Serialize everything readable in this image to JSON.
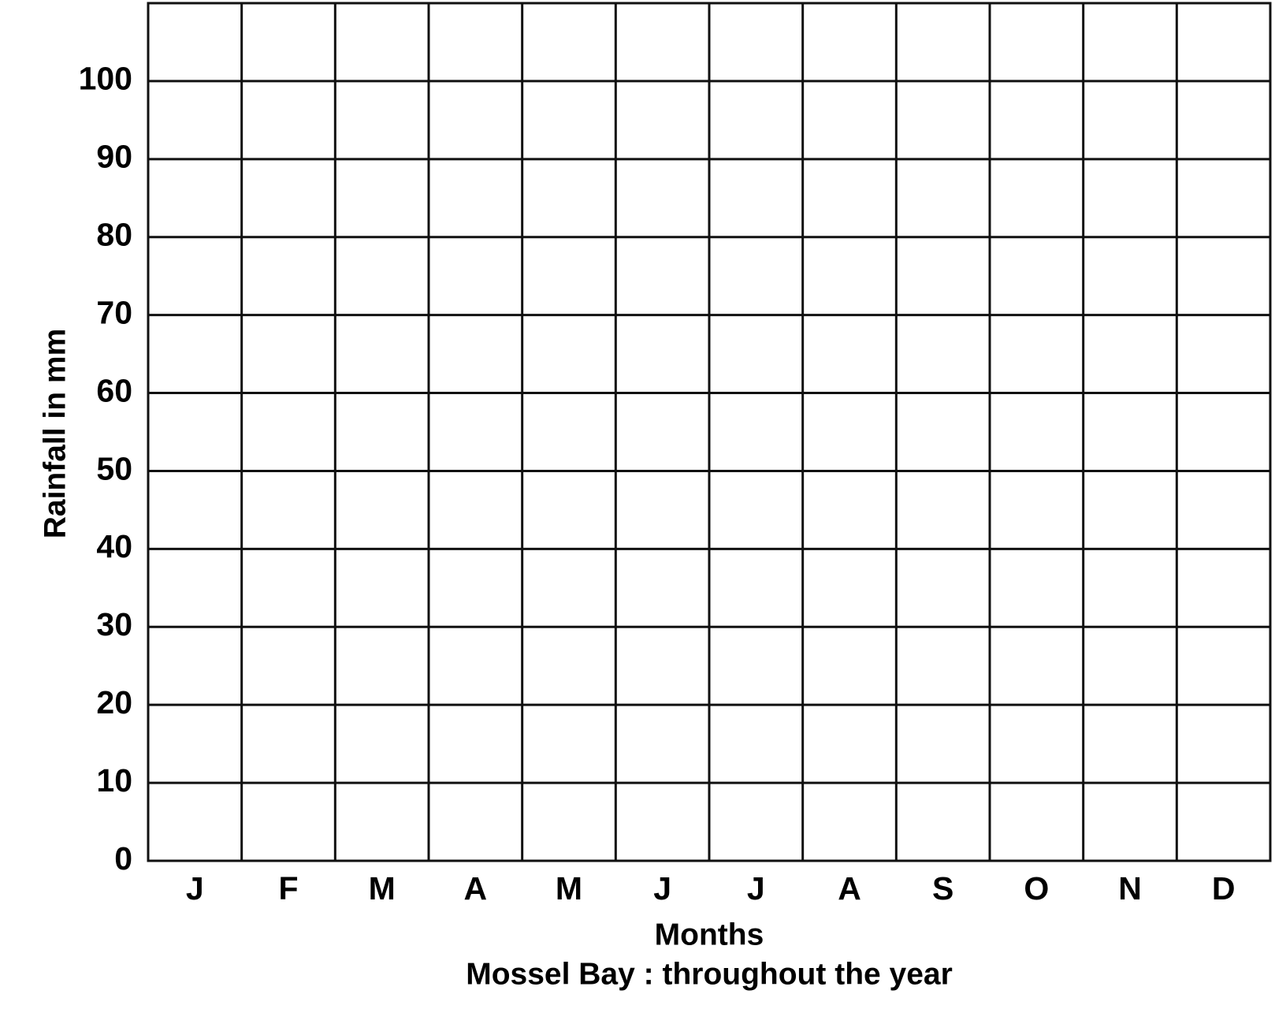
{
  "chart_data": {
    "type": "bar",
    "title": "Mossel Bay : throughout the year",
    "xlabel": "Months",
    "ylabel": "Rainfall in mm",
    "categories": [
      "J",
      "F",
      "M",
      "A",
      "M",
      "J",
      "J",
      "A",
      "S",
      "O",
      "N",
      "D"
    ],
    "ylim": [
      0,
      110
    ],
    "yticks": [
      0,
      10,
      20,
      30,
      40,
      50,
      60,
      70,
      80,
      90,
      100
    ],
    "grid": true
  }
}
